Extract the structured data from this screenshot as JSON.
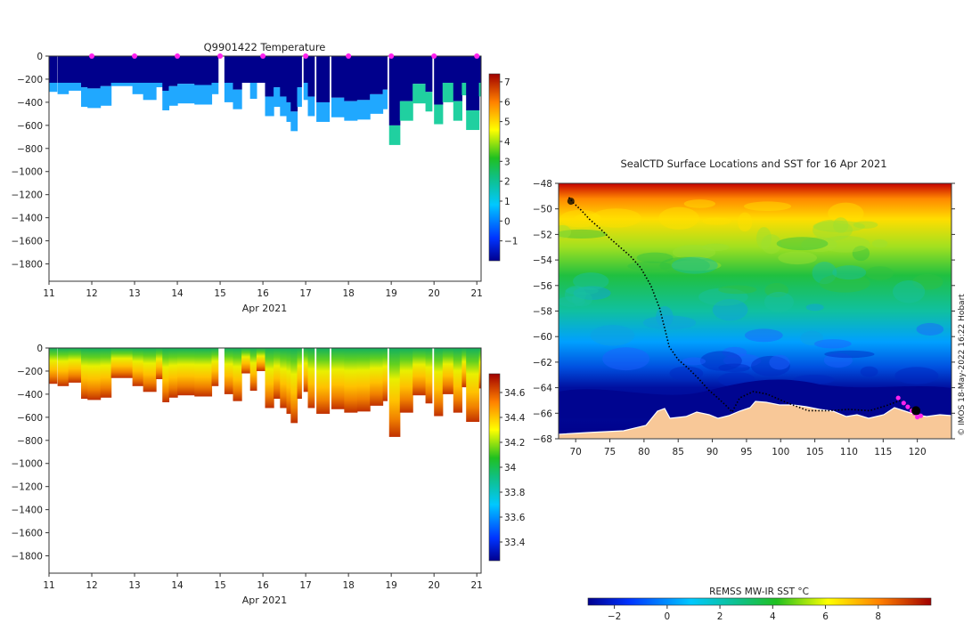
{
  "chart_data": [
    {
      "id": "temperature",
      "type": "heatmap",
      "title": "Q9901422  Temperature",
      "xlabel": "Apr 2021",
      "xticks": [
        11,
        12,
        13,
        14,
        15,
        16,
        17,
        18,
        19,
        20,
        21
      ],
      "xlim": [
        11,
        21.1
      ],
      "yticks": [
        0,
        -200,
        -400,
        -600,
        -800,
        -1000,
        -1200,
        -1400,
        -1600,
        -1800
      ],
      "ylim": [
        -1950,
        0
      ],
      "colorbar": {
        "min": -2,
        "max": 7.4,
        "ticks": [
          -1,
          0,
          1,
          2,
          3,
          4,
          5,
          6,
          7
        ]
      },
      "markers": {
        "x": [
          12,
          13,
          14,
          15,
          16,
          17,
          18,
          19,
          20,
          21
        ],
        "color": "#ff22ee"
      },
      "profiles": [
        {
          "t": 11.0,
          "w": 0.18,
          "depth": 310
        },
        {
          "t": 11.2,
          "w": 0.25,
          "depth": 330
        },
        {
          "t": 11.45,
          "w": 0.3,
          "depth": 300
        },
        {
          "t": 11.75,
          "w": 0.15,
          "depth": 440
        },
        {
          "t": 11.9,
          "w": 0.3,
          "depth": 450
        },
        {
          "t": 12.2,
          "w": 0.25,
          "depth": 430
        },
        {
          "t": 12.45,
          "w": 0.5,
          "depth": 260
        },
        {
          "t": 12.95,
          "w": 0.25,
          "depth": 330
        },
        {
          "t": 13.2,
          "w": 0.3,
          "depth": 380
        },
        {
          "t": 13.5,
          "w": 0.15,
          "depth": 270
        },
        {
          "t": 13.65,
          "w": 0.15,
          "depth": 470
        },
        {
          "t": 13.8,
          "w": 0.2,
          "depth": 430
        },
        {
          "t": 14.0,
          "w": 0.4,
          "depth": 410
        },
        {
          "t": 14.4,
          "w": 0.4,
          "depth": 420
        },
        {
          "t": 14.8,
          "w": 0.15,
          "depth": 330
        },
        {
          "t": 15.1,
          "w": 0.2,
          "depth": 400
        },
        {
          "t": 15.3,
          "w": 0.2,
          "depth": 460
        },
        {
          "t": 15.5,
          "w": 0.2,
          "depth": 220
        },
        {
          "t": 15.7,
          "w": 0.15,
          "depth": 370
        },
        {
          "t": 15.85,
          "w": 0.2,
          "depth": 200
        },
        {
          "t": 16.05,
          "w": 0.2,
          "depth": 520
        },
        {
          "t": 16.25,
          "w": 0.15,
          "depth": 440
        },
        {
          "t": 16.4,
          "w": 0.15,
          "depth": 520
        },
        {
          "t": 16.55,
          "w": 0.1,
          "depth": 570
        },
        {
          "t": 16.65,
          "w": 0.15,
          "depth": 650
        },
        {
          "t": 16.8,
          "w": 0.1,
          "depth": 440
        },
        {
          "t": 16.95,
          "w": 0.1,
          "depth": 380
        },
        {
          "t": 17.05,
          "w": 0.15,
          "depth": 520
        },
        {
          "t": 17.25,
          "w": 0.3,
          "depth": 570
        },
        {
          "t": 17.6,
          "w": 0.3,
          "depth": 530
        },
        {
          "t": 17.9,
          "w": 0.3,
          "depth": 560
        },
        {
          "t": 18.2,
          "w": 0.3,
          "depth": 550
        },
        {
          "t": 18.5,
          "w": 0.3,
          "depth": 500
        },
        {
          "t": 18.8,
          "w": 0.1,
          "depth": 460
        },
        {
          "t": 18.95,
          "w": 0.25,
          "depth": 770
        },
        {
          "t": 19.2,
          "w": 0.3,
          "depth": 560
        },
        {
          "t": 19.5,
          "w": 0.3,
          "depth": 410
        },
        {
          "t": 19.8,
          "w": 0.15,
          "depth": 480
        },
        {
          "t": 20.0,
          "w": 0.2,
          "depth": 590
        },
        {
          "t": 20.2,
          "w": 0.25,
          "depth": 400
        },
        {
          "t": 20.45,
          "w": 0.2,
          "depth": 560
        },
        {
          "t": 20.65,
          "w": 0.1,
          "depth": 340
        },
        {
          "t": 20.75,
          "w": 0.3,
          "depth": 640
        },
        {
          "t": 21.05,
          "w": 0.05,
          "depth": 350
        }
      ]
    },
    {
      "id": "salinity",
      "type": "heatmap",
      "title": "",
      "xlabel": "Apr 2021",
      "xticks": [
        11,
        12,
        13,
        14,
        15,
        16,
        17,
        18,
        19,
        20,
        21
      ],
      "xlim": [
        11,
        21.1
      ],
      "yticks": [
        0,
        -200,
        -400,
        -600,
        -800,
        -1000,
        -1200,
        -1400,
        -1600,
        -1800
      ],
      "ylim": [
        -1950,
        0
      ],
      "colorbar": {
        "min": 33.25,
        "max": 34.75,
        "ticks": [
          33.4,
          33.6,
          33.8,
          34,
          34.2,
          34.4,
          34.6
        ]
      }
    },
    {
      "id": "sst_map",
      "type": "heatmap",
      "title": "SealCTD Surface Locations and SST for 16 Apr 2021",
      "xlabel": "",
      "ylabel": "",
      "xticks": [
        70,
        75,
        80,
        85,
        90,
        95,
        100,
        105,
        110,
        115,
        120
      ],
      "xlim": [
        67.5,
        125
      ],
      "yticks": [
        -48,
        -50,
        -52,
        -54,
        -56,
        -58,
        -60,
        -62,
        -64,
        -66,
        -68
      ],
      "ylim": [
        -68,
        -48
      ],
      "credit": "© IMOS 18-May-2022 16:22 Hobart",
      "colorbar": {
        "label": "REMSS MW-IR SST °C",
        "min": -3,
        "max": 10,
        "ticks": [
          -2,
          0,
          2,
          4,
          6,
          8
        ]
      },
      "track": [
        [
          69.0,
          -49.1
        ],
        [
          69.6,
          -49.5
        ],
        [
          70.8,
          -50.1
        ],
        [
          72.0,
          -50.8
        ],
        [
          73.5,
          -51.5
        ],
        [
          75.0,
          -52.3
        ],
        [
          76.5,
          -53.0
        ],
        [
          78.0,
          -53.7
        ],
        [
          79.5,
          -54.6
        ],
        [
          81.0,
          -56.0
        ],
        [
          82.3,
          -57.8
        ],
        [
          83.0,
          -59.3
        ],
        [
          83.7,
          -60.8
        ],
        [
          85.0,
          -61.8
        ],
        [
          86.5,
          -62.5
        ],
        [
          88.0,
          -63.3
        ],
        [
          89.5,
          -64.2
        ],
        [
          90.8,
          -64.8
        ],
        [
          92.0,
          -65.4
        ],
        [
          92.9,
          -65.9
        ],
        [
          94.0,
          -64.8
        ],
        [
          96.0,
          -64.3
        ],
        [
          98.0,
          -64.5
        ],
        [
          101.0,
          -65.2
        ],
        [
          104.0,
          -65.8
        ],
        [
          107.0,
          -65.8
        ],
        [
          110.0,
          -65.7
        ],
        [
          113.0,
          -65.8
        ],
        [
          115.5,
          -65.4
        ],
        [
          117.5,
          -65.0
        ],
        [
          119.0,
          -65.6
        ],
        [
          120.2,
          -66.1
        ]
      ],
      "recent_positions": [
        [
          117.2,
          -64.8
        ],
        [
          118.0,
          -65.2
        ],
        [
          118.6,
          -65.5
        ],
        [
          119.2,
          -65.8
        ],
        [
          119.6,
          -66.0
        ],
        [
          120.0,
          -66.3
        ],
        [
          120.5,
          -66.2
        ]
      ]
    }
  ]
}
